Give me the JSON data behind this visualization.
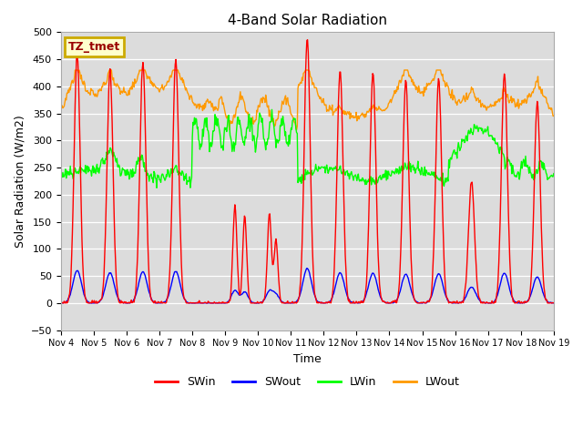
{
  "title": "4-Band Solar Radiation",
  "xlabel": "Time",
  "ylabel": "Solar Radiation (W/m2)",
  "ylim": [
    -50,
    500
  ],
  "bg_color": "#dcdcdc",
  "fig_color": "#ffffff",
  "annotation_text": "TZ_tmet",
  "annotation_bg": "#ffffcc",
  "annotation_border": "#ccaa00",
  "annotation_text_color": "#990000",
  "x_tick_labels": [
    "Nov 4",
    "Nov 5",
    "Nov 6",
    "Nov 7",
    "Nov 8",
    "Nov 9",
    "Nov 10",
    "Nov 11",
    "Nov 12",
    "Nov 13",
    "Nov 14",
    "Nov 15",
    "Nov 16",
    "Nov 17",
    "Nov 18",
    "Nov 19"
  ],
  "colors": {
    "SWin": "#ff0000",
    "SWout": "#0000ff",
    "LWin": "#00ff00",
    "LWout": "#ff9900"
  },
  "line_width": 1.0
}
